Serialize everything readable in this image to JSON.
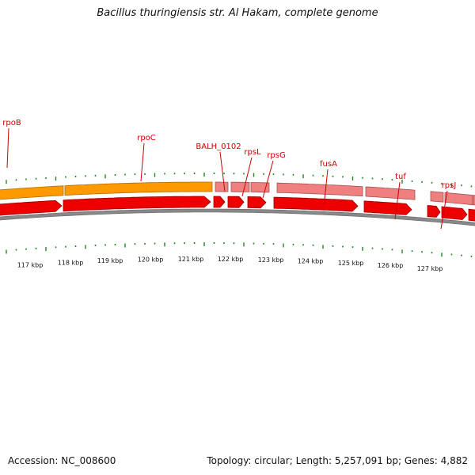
{
  "title": "Bacillus thuringiensis str. Al Hakam, complete genome",
  "footer": {
    "accession_label": "Accession:",
    "accession": "NC_008600",
    "topology_label": "Topology:",
    "topology": "circular",
    "length_label": "Length:",
    "length": "5,257,091 bp",
    "genes_label": "Genes:",
    "genes": "4,882"
  },
  "gene_labels": [
    "rpoB",
    "rpoC",
    "BALH_0102",
    "rpsL",
    "rpsG",
    "fusA",
    "tuf",
    "rpsJ"
  ],
  "kbp_labels": [
    "117 kbp",
    "118 kbp",
    "119 kbp",
    "120 kbp",
    "121 kbp",
    "122 kbp",
    "123 kbp",
    "124 kbp",
    "125 kbp",
    "126 kbp",
    "127 kbp"
  ],
  "colors": {
    "cds": "#ee0000",
    "rna_orange": "#ff9900",
    "rna_pink": "#f08080",
    "backbone": "#888888",
    "tick": "#228822",
    "label": "#cc0000"
  }
}
